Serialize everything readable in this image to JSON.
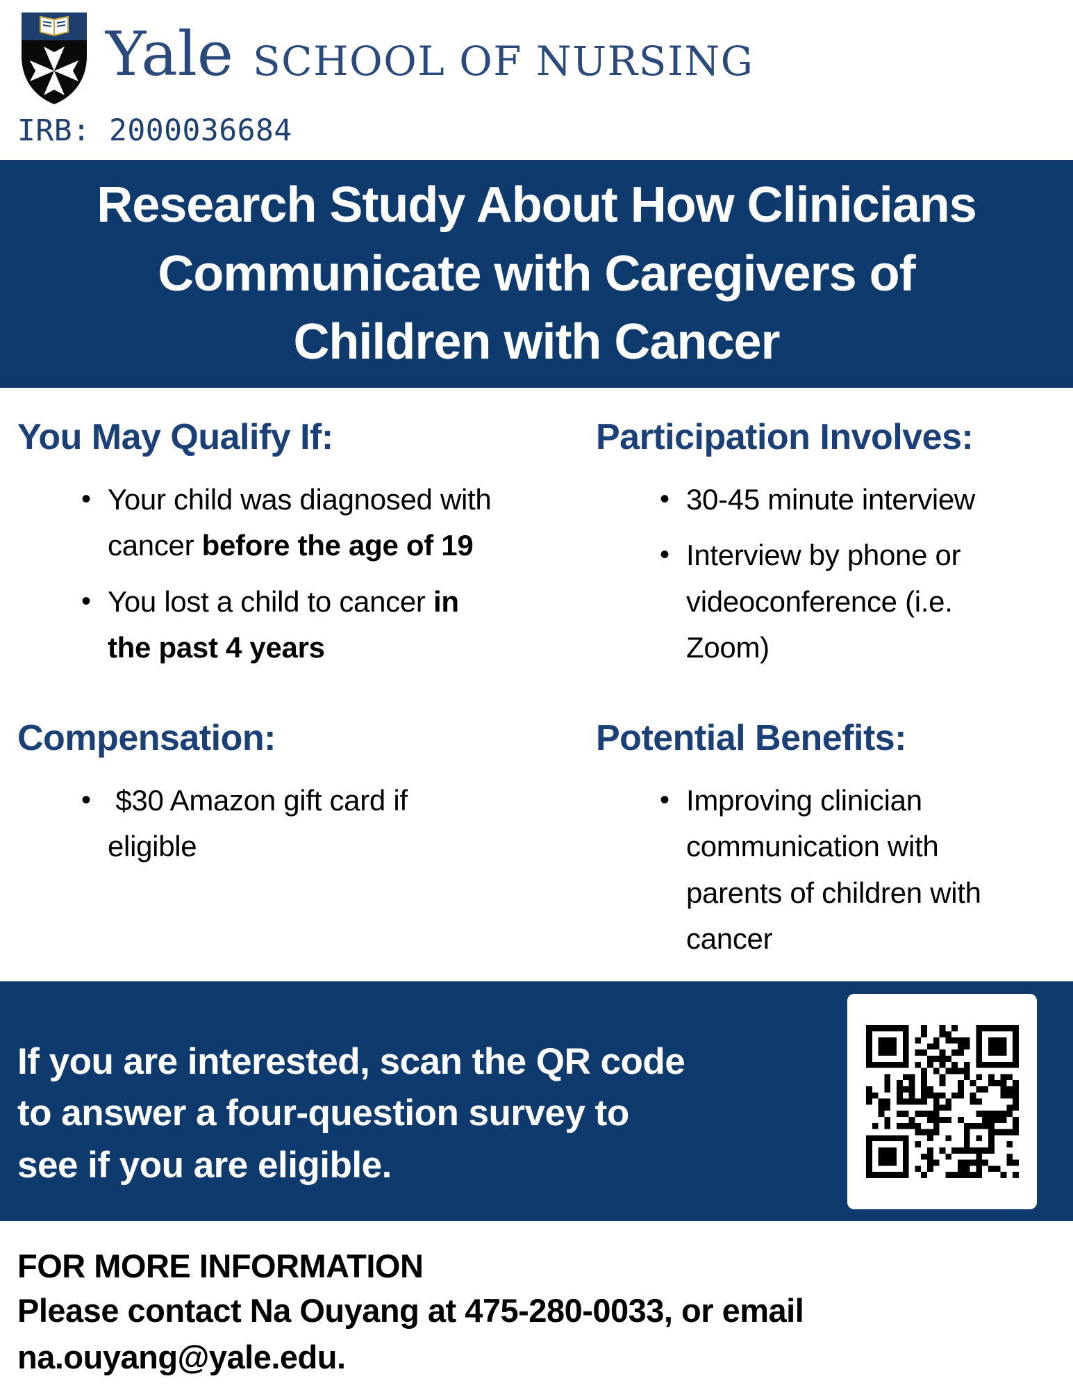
{
  "colors": {
    "banner": "#0e3a6e",
    "banner_text": "#ffffff",
    "heading": "#1b4078",
    "logo": "#2a4a7c",
    "irb": "#1e4071",
    "text": "#000000",
    "shield_band": "#1c3f6d",
    "shield_black": "#0a0a0a",
    "qr_dark": "#000000"
  },
  "header": {
    "shield_icon": "yale-shield-icon",
    "wordmark": "Yale",
    "department": "SCHOOL OF NURSING",
    "irb": "IRB: 2000036684"
  },
  "title_banner": {
    "text": "Research Study About How Clinicians\nCommunicate with Caregivers of\nChildren with Cancer"
  },
  "sections": {
    "qualify": {
      "heading": "You May Qualify If:",
      "bullets": [
        [
          {
            "text": "Your child was diagnosed with\ncancer ",
            "bold": false
          },
          {
            "text": "before the age of 19",
            "bold": true
          }
        ],
        [
          {
            "text": "You lost a child to cancer ",
            "bold": false
          },
          {
            "text": "in\nthe past 4 years",
            "bold": true
          }
        ]
      ]
    },
    "participation": {
      "heading": "Participation Involves:",
      "bullets": [
        [
          {
            "text": "30-45 minute interview",
            "bold": false
          }
        ],
        [
          {
            "text": "Interview by phone or\nvideoconference (i.e.\nZoom)",
            "bold": false
          }
        ]
      ]
    },
    "compensation": {
      "heading": "Compensation:",
      "bullets": [
        [
          {
            "text": " $30 Amazon gift card if\neligible",
            "bold": false
          }
        ]
      ]
    },
    "benefits": {
      "heading": "Potential Benefits:",
      "bullets": [
        [
          {
            "text": "Improving clinician\ncommunication with\nparents of children with\ncancer",
            "bold": false
          }
        ]
      ]
    }
  },
  "cta": {
    "text": "If you are interested, scan the QR code\nto answer a four-question survey to\nsee if you are eligible.",
    "qr_icon": "qr-code"
  },
  "footer": {
    "heading": "FOR MORE INFORMATION",
    "text": "Please contact Na Ouyang at 475-280-0033, or email\nna.ouyang@yale.edu."
  }
}
